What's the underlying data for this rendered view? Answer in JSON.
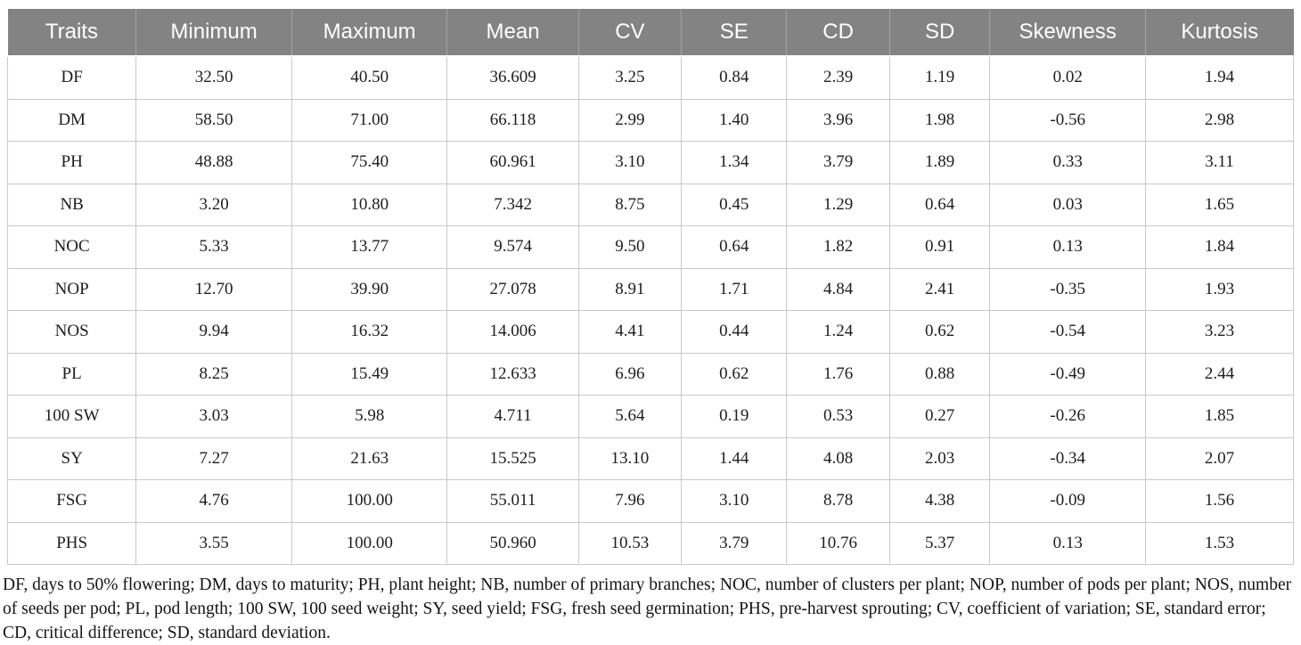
{
  "table": {
    "columns": [
      "Traits",
      "Minimum",
      "Maximum",
      "Mean",
      "CV",
      "SE",
      "CD",
      "SD",
      "Skewness",
      "Kurtosis"
    ],
    "rows": [
      {
        "trait": "DF",
        "values": [
          "32.50",
          "40.50",
          "36.609",
          "3.25",
          "0.84",
          "2.39",
          "1.19",
          "0.02",
          "1.94"
        ]
      },
      {
        "trait": "DM",
        "values": [
          "58.50",
          "71.00",
          "66.118",
          "2.99",
          "1.40",
          "3.96",
          "1.98",
          "-0.56",
          "2.98"
        ]
      },
      {
        "trait": "PH",
        "values": [
          "48.88",
          "75.40",
          "60.961",
          "3.10",
          "1.34",
          "3.79",
          "1.89",
          "0.33",
          "3.11"
        ]
      },
      {
        "trait": "NB",
        "values": [
          "3.20",
          "10.80",
          "7.342",
          "8.75",
          "0.45",
          "1.29",
          "0.64",
          "0.03",
          "1.65"
        ]
      },
      {
        "trait": "NOC",
        "values": [
          "5.33",
          "13.77",
          "9.574",
          "9.50",
          "0.64",
          "1.82",
          "0.91",
          "0.13",
          "1.84"
        ]
      },
      {
        "trait": "NOP",
        "values": [
          "12.70",
          "39.90",
          "27.078",
          "8.91",
          "1.71",
          "4.84",
          "2.41",
          "-0.35",
          "1.93"
        ]
      },
      {
        "trait": "NOS",
        "values": [
          "9.94",
          "16.32",
          "14.006",
          "4.41",
          "0.44",
          "1.24",
          "0.62",
          "-0.54",
          "3.23"
        ]
      },
      {
        "trait": "PL",
        "values": [
          "8.25",
          "15.49",
          "12.633",
          "6.96",
          "0.62",
          "1.76",
          "0.88",
          "-0.49",
          "2.44"
        ]
      },
      {
        "trait": "100 SW",
        "values": [
          "3.03",
          "5.98",
          "4.711",
          "5.64",
          "0.19",
          "0.53",
          "0.27",
          "-0.26",
          "1.85"
        ]
      },
      {
        "trait": "SY",
        "values": [
          "7.27",
          "21.63",
          "15.525",
          "13.10",
          "1.44",
          "4.08",
          "2.03",
          "-0.34",
          "2.07"
        ]
      },
      {
        "trait": "FSG",
        "values": [
          "4.76",
          "100.00",
          "55.011",
          "7.96",
          "3.10",
          "8.78",
          "4.38",
          "-0.09",
          "1.56"
        ]
      },
      {
        "trait": "PHS",
        "values": [
          "3.55",
          "100.00",
          "50.960",
          "10.53",
          "3.79",
          "10.76",
          "5.37",
          "0.13",
          "1.53"
        ]
      }
    ]
  },
  "footnote": "DF, days to 50% flowering; DM, days to maturity; PH, plant height; NB, number of primary branches; NOC, number of clusters per plant; NOP, number of pods per plant; NOS, number of seeds per pod; PL, pod length; 100 SW, 100 seed weight; SY, seed yield; FSG, fresh seed germination; PHS, pre-harvest sprouting; CV, coefficient of variation; SE, standard error; CD, critical difference; SD, standard deviation.",
  "colors": {
    "header_bg": "#838383",
    "header_text": "#ffffff",
    "header_divider": "#a2a2a2",
    "grid_line": "#c9c9c9",
    "body_text": "#1d1d1d"
  }
}
